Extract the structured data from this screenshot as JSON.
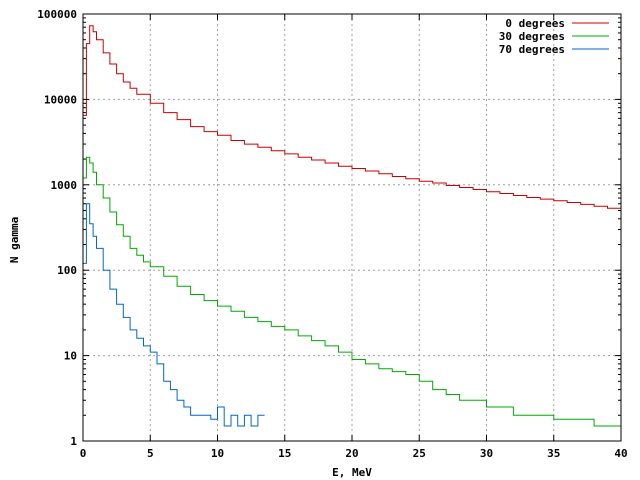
{
  "chart_data": {
    "type": "step",
    "title": "",
    "xlabel": "E, MeV",
    "ylabel": "N gamma",
    "xlim": [
      0,
      40
    ],
    "ylim": [
      1,
      100000
    ],
    "yscale": "log",
    "grid": true,
    "legend_position": "top-right",
    "x_ticks": [
      0,
      5,
      10,
      15,
      20,
      25,
      30,
      35,
      40
    ],
    "y_ticks": [
      1,
      10,
      100,
      1000,
      10000,
      100000
    ],
    "x_tick_labels": [
      "0",
      "5",
      "10",
      "15",
      "20",
      "25",
      "30",
      "35",
      "40"
    ],
    "y_tick_labels": [
      "1",
      "10",
      "100",
      "1000",
      "10000",
      "100000"
    ],
    "series": [
      {
        "name": "0 degrees",
        "color": "#cc0000",
        "x": [
          0,
          0.25,
          0.5,
          0.75,
          1,
          1.5,
          2,
          2.5,
          3,
          3.5,
          4,
          5,
          6,
          7,
          8,
          9,
          10,
          11,
          12,
          13,
          14,
          15,
          16,
          17,
          18,
          19,
          20,
          21,
          22,
          23,
          24,
          25,
          26,
          27,
          28,
          29,
          30,
          31,
          32,
          33,
          34,
          35,
          36,
          37,
          38,
          39,
          40
        ],
        "values": [
          6500,
          45000,
          73000,
          62000,
          50000,
          35000,
          26000,
          20000,
          16000,
          13500,
          11500,
          9000,
          7000,
          5800,
          4800,
          4200,
          3800,
          3300,
          3000,
          2750,
          2500,
          2300,
          2100,
          1950,
          1800,
          1650,
          1550,
          1450,
          1350,
          1250,
          1180,
          1100,
          1050,
          980,
          930,
          880,
          830,
          790,
          750,
          710,
          680,
          650,
          620,
          590,
          560,
          530,
          500
        ]
      },
      {
        "name": "30 degrees",
        "color": "#00aa00",
        "x": [
          0,
          0.25,
          0.5,
          0.75,
          1,
          1.5,
          2,
          2.5,
          3,
          3.5,
          4,
          4.5,
          5,
          6,
          7,
          8,
          9,
          10,
          11,
          12,
          13,
          14,
          15,
          16,
          17,
          18,
          19,
          20,
          21,
          22,
          23,
          24,
          25,
          26,
          27,
          28,
          29,
          30,
          31,
          32,
          33,
          34,
          35,
          36,
          37,
          38,
          39,
          40
        ],
        "values": [
          1200,
          2100,
          1800,
          1400,
          1000,
          700,
          480,
          340,
          250,
          180,
          150,
          125,
          110,
          85,
          65,
          52,
          44,
          38,
          33,
          28,
          25,
          22,
          20,
          17,
          15,
          13,
          11,
          9,
          8,
          7,
          6.5,
          6,
          5,
          4,
          3.5,
          3,
          3,
          2.5,
          2.5,
          2,
          2,
          2,
          1.8,
          1.8,
          1.8,
          1.5,
          1.5,
          1.5
        ]
      },
      {
        "name": "70 degrees",
        "color": "#0066cc",
        "x": [
          0,
          0.25,
          0.5,
          0.75,
          1,
          1.5,
          2,
          2.5,
          3,
          3.5,
          4,
          4.5,
          5,
          5.5,
          6,
          6.5,
          7,
          7.5,
          8,
          8.5,
          9,
          9.5,
          10,
          10.5,
          11,
          11.5,
          12,
          12.5,
          13
        ],
        "values": [
          120,
          600,
          350,
          250,
          180,
          100,
          60,
          40,
          28,
          20,
          16,
          13,
          11,
          8,
          5,
          4,
          3,
          2.5,
          2,
          2,
          2,
          1.8,
          2.5,
          1.5,
          2,
          1.5,
          2,
          1.5,
          2
        ]
      }
    ]
  }
}
